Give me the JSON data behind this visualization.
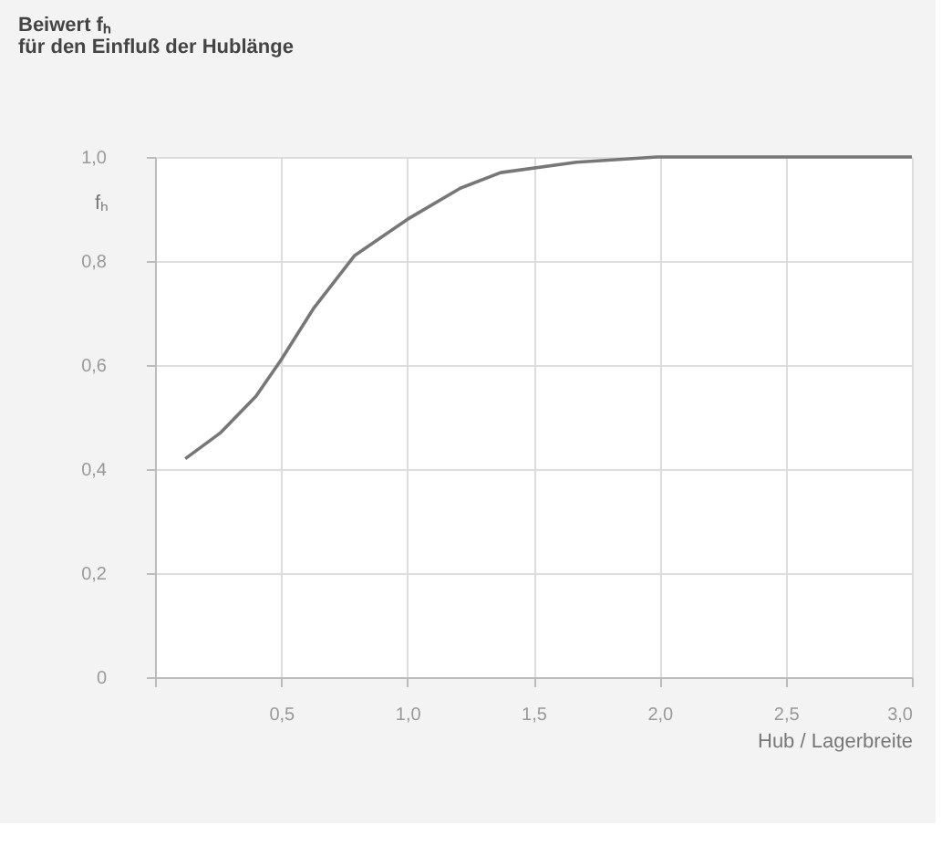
{
  "chart_data": {
    "type": "line",
    "title": "Beiwert fₕ",
    "subtitle": "für den Einfluß der Hublänge",
    "xlabel": "Hub / Lagerbreite",
    "ylabel": "fₕ",
    "x": [
      0.12,
      0.26,
      0.4,
      0.5,
      0.63,
      0.79,
      1.0,
      1.21,
      1.37,
      1.67,
      1.99,
      2.26,
      3.0
    ],
    "series": [
      {
        "color": "#777777",
        "values": [
          0.42,
          0.47,
          0.54,
          0.61,
          0.71,
          0.81,
          0.88,
          0.94,
          0.97,
          0.99,
          1.0,
          1.0,
          1.0
        ]
      }
    ],
    "xlim": [
      0,
      3.0
    ],
    "ylim": [
      0,
      1.0
    ],
    "xticks": [
      {
        "value": 0,
        "label": null
      },
      {
        "value": 0.5,
        "label": "0,5"
      },
      {
        "value": 1.0,
        "label": "1,0"
      },
      {
        "value": 1.5,
        "label": "1,5"
      },
      {
        "value": 2.0,
        "label": "2,0"
      },
      {
        "value": 2.5,
        "label": "2,5"
      },
      {
        "value": 3.0,
        "label": "3,0"
      }
    ],
    "yticks": [
      {
        "value": 0,
        "label": "0"
      },
      {
        "value": 0.2,
        "label": "0,2"
      },
      {
        "value": 0.4,
        "label": "0,4"
      },
      {
        "value": 0.6,
        "label": "0,6"
      },
      {
        "value": 0.8,
        "label": "0,8"
      },
      {
        "value": 1.0,
        "label": "1,0"
      }
    ],
    "grid": true,
    "line_style": "solid",
    "marker": "none"
  }
}
